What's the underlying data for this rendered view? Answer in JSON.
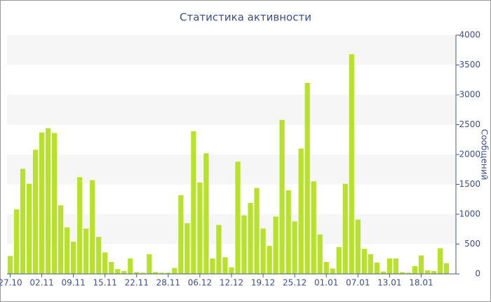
{
  "chart_data": {
    "type": "bar",
    "title": "Статистика активности",
    "y_label": "Сообщений",
    "color": "#b8e12c",
    "categories": [
      "27.10",
      null,
      null,
      null,
      null,
      "02.11",
      null,
      null,
      null,
      null,
      "09.11",
      null,
      null,
      null,
      null,
      "15.11",
      null,
      null,
      null,
      null,
      "22.11",
      null,
      null,
      null,
      null,
      "28.11",
      null,
      null,
      null,
      null,
      "06.12",
      null,
      null,
      null,
      null,
      "12.12",
      null,
      null,
      null,
      null,
      "19.12",
      null,
      null,
      null,
      null,
      "25.12",
      null,
      null,
      null,
      null,
      "01.01",
      null,
      null,
      null,
      null,
      "07.01",
      null,
      null,
      null,
      null,
      "13.01",
      null,
      null,
      null,
      null,
      "18.01",
      null,
      null,
      null,
      null,
      null
    ],
    "values": [
      300,
      1080,
      1760,
      1510,
      2080,
      2370,
      2440,
      2360,
      1150,
      780,
      540,
      1620,
      760,
      1570,
      620,
      360,
      200,
      80,
      50,
      260,
      30,
      20,
      330,
      30,
      20,
      20,
      100,
      1320,
      850,
      2390,
      1530,
      2020,
      260,
      820,
      280,
      110,
      1880,
      980,
      1190,
      1440,
      760,
      470,
      960,
      2580,
      1400,
      880,
      2100,
      3200,
      1550,
      660,
      200,
      90,
      450,
      1510,
      3680,
      910,
      420,
      330,
      190,
      40,
      260,
      260,
      30,
      20,
      130,
      310,
      60,
      50,
      430,
      180,
      0
    ],
    "ylim": [
      0,
      4000
    ],
    "yticks": [
      0,
      500,
      1000,
      1500,
      2000,
      2500,
      3000,
      3500,
      4000
    ],
    "grid": "bands"
  }
}
